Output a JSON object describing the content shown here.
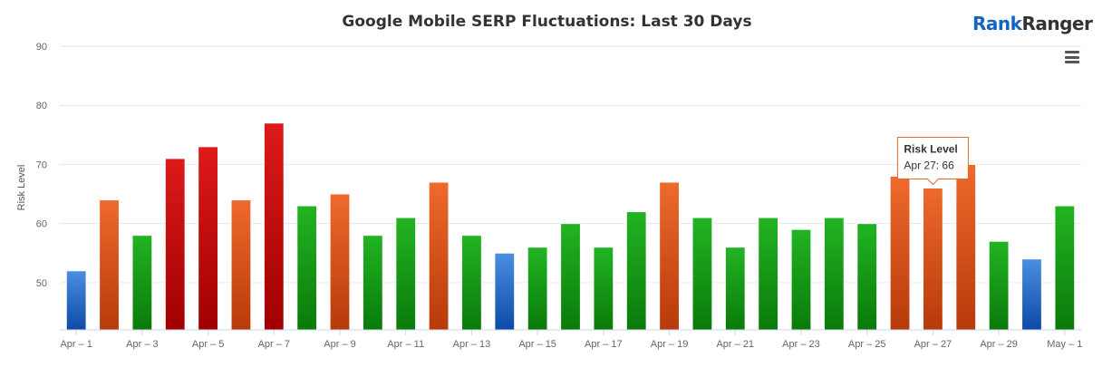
{
  "header": {
    "title": "Google Mobile SERP Fluctuations: Last 30 Days",
    "logo_part1": "Rank",
    "logo_part2": "Ranger"
  },
  "chart_data": {
    "type": "bar",
    "ylabel": "Risk Level",
    "ylim": [
      42,
      90
    ],
    "yticks": [
      50,
      60,
      70,
      80,
      90
    ],
    "grid": true,
    "categories": [
      "Apr – 1",
      "Apr – 2",
      "Apr – 3",
      "Apr – 4",
      "Apr – 5",
      "Apr – 6",
      "Apr – 7",
      "Apr – 8",
      "Apr – 9",
      "Apr – 10",
      "Apr – 11",
      "Apr – 12",
      "Apr – 13",
      "Apr – 14",
      "Apr – 15",
      "Apr – 16",
      "Apr – 17",
      "Apr – 18",
      "Apr – 19",
      "Apr – 20",
      "Apr – 21",
      "Apr – 22",
      "Apr – 23",
      "Apr – 24",
      "Apr – 25",
      "Apr – 26",
      "Apr – 27",
      "Apr – 28",
      "Apr – 29",
      "Apr – 30",
      "May – 1"
    ],
    "xtick_labels": [
      "Apr – 1",
      "Apr – 3",
      "Apr – 5",
      "Apr – 7",
      "Apr – 9",
      "Apr – 11",
      "Apr – 13",
      "Apr – 15",
      "Apr – 17",
      "Apr – 19",
      "Apr – 21",
      "Apr – 23",
      "Apr – 25",
      "Apr – 27",
      "Apr – 29",
      "May – 1"
    ],
    "values": [
      52,
      64,
      58,
      71,
      73,
      64,
      77,
      63,
      65,
      58,
      61,
      67,
      58,
      55,
      56,
      60,
      56,
      62,
      67,
      61,
      56,
      61,
      59,
      61,
      60,
      68,
      66,
      70,
      57,
      54,
      63
    ],
    "color_scale": [
      {
        "max": 55,
        "level": "low",
        "top": "#4a8fe0",
        "bottom": "#0d4aa8"
      },
      {
        "max": 63,
        "level": "normal",
        "top": "#22b422",
        "bottom": "#0a7a0a"
      },
      {
        "max": 70,
        "level": "high",
        "top": "#ee6a2c",
        "bottom": "#b83a0a"
      },
      {
        "max": 100,
        "level": "very-high",
        "top": "#dd1a1a",
        "bottom": "#a00000"
      }
    ],
    "tooltip": {
      "series": "Risk Level",
      "text": "Apr 27: 66",
      "index": 26
    }
  }
}
